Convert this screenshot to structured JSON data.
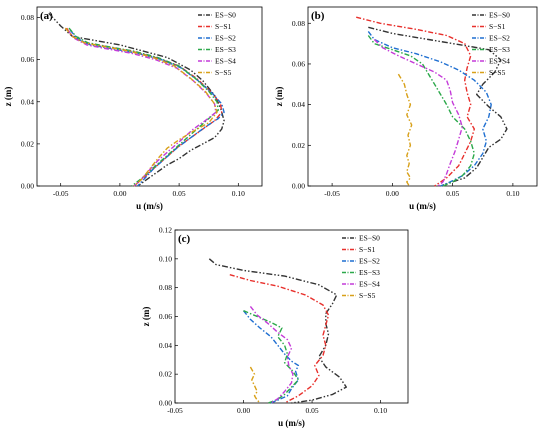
{
  "chart_data": [
    {
      "panel": "(a)",
      "type": "line",
      "xlabel": "u (m/s)",
      "ylabel": "z (m)",
      "xlim": [
        -0.07,
        0.12
      ],
      "ylim": [
        0,
        0.085
      ],
      "xticks": [
        "-0.05",
        "0.00",
        "0.05",
        "0.10"
      ],
      "yticks": [
        "0.00",
        "0.02",
        "0.04",
        "0.06",
        "0.08"
      ],
      "legend_position": "top-right",
      "series": [
        {
          "name": "ES−S0",
          "color": "#333333",
          "x": [
            -0.06,
            -0.05,
            -0.04,
            -0.02,
            0.0,
            0.02,
            0.04,
            0.06,
            0.07,
            0.08,
            0.085,
            0.088,
            0.086,
            0.08,
            0.07,
            0.06,
            0.05,
            0.04,
            0.03,
            0.02,
            0.015
          ],
          "y": [
            0.082,
            0.076,
            0.071,
            0.069,
            0.067,
            0.064,
            0.061,
            0.055,
            0.05,
            0.043,
            0.037,
            0.031,
            0.027,
            0.023,
            0.02,
            0.017,
            0.013,
            0.01,
            0.006,
            0.002,
            0.0
          ]
        },
        {
          "name": "S−S1",
          "color": "#e8302c",
          "x": [
            -0.045,
            -0.04,
            -0.03,
            -0.01,
            0.01,
            0.03,
            0.05,
            0.065,
            0.078,
            0.085,
            0.086,
            0.08,
            0.07,
            0.06,
            0.05,
            0.04,
            0.03,
            0.02,
            0.012
          ],
          "y": [
            0.075,
            0.071,
            0.068,
            0.066,
            0.064,
            0.061,
            0.057,
            0.051,
            0.044,
            0.039,
            0.035,
            0.031,
            0.027,
            0.023,
            0.019,
            0.014,
            0.009,
            0.004,
            0.0
          ]
        },
        {
          "name": "ES−S2",
          "color": "#1f6fd1",
          "x": [
            -0.042,
            -0.036,
            -0.025,
            -0.005,
            0.015,
            0.035,
            0.052,
            0.066,
            0.078,
            0.086,
            0.088,
            0.083,
            0.072,
            0.06,
            0.048,
            0.038,
            0.028,
            0.02,
            0.015
          ],
          "y": [
            0.074,
            0.07,
            0.067,
            0.065,
            0.063,
            0.06,
            0.056,
            0.05,
            0.044,
            0.039,
            0.035,
            0.032,
            0.028,
            0.023,
            0.018,
            0.013,
            0.008,
            0.003,
            0.0
          ]
        },
        {
          "name": "ES−S3",
          "color": "#2ba84a",
          "x": [
            -0.043,
            -0.037,
            -0.027,
            -0.008,
            0.012,
            0.032,
            0.05,
            0.064,
            0.075,
            0.082,
            0.083,
            0.075,
            0.065,
            0.055,
            0.045,
            0.035,
            0.025,
            0.017,
            0.01
          ],
          "y": [
            0.075,
            0.071,
            0.068,
            0.066,
            0.064,
            0.061,
            0.057,
            0.051,
            0.045,
            0.04,
            0.036,
            0.032,
            0.027,
            0.022,
            0.017,
            0.012,
            0.007,
            0.003,
            0.0
          ]
        },
        {
          "name": "ES−S4",
          "color": "#c43bd8",
          "x": [
            -0.044,
            -0.038,
            -0.028,
            -0.01,
            0.01,
            0.03,
            0.048,
            0.062,
            0.073,
            0.08,
            0.081,
            0.072,
            0.062,
            0.052,
            0.042,
            0.032,
            0.024,
            0.018,
            0.012
          ],
          "y": [
            0.074,
            0.07,
            0.067,
            0.065,
            0.063,
            0.06,
            0.056,
            0.05,
            0.044,
            0.039,
            0.035,
            0.031,
            0.027,
            0.022,
            0.017,
            0.012,
            0.007,
            0.003,
            0.0
          ]
        },
        {
          "name": "S−S5",
          "color": "#d8a018",
          "x": [
            -0.046,
            -0.04,
            -0.03,
            -0.012,
            0.008,
            0.028,
            0.046,
            0.06,
            0.072,
            0.08,
            0.082,
            0.075,
            0.062,
            0.05,
            0.04,
            0.032,
            0.025,
            0.018,
            0.012
          ],
          "y": [
            0.075,
            0.071,
            0.068,
            0.066,
            0.064,
            0.061,
            0.057,
            0.051,
            0.045,
            0.039,
            0.035,
            0.03,
            0.026,
            0.022,
            0.018,
            0.013,
            0.008,
            0.003,
            0.0
          ]
        }
      ]
    },
    {
      "panel": "(b)",
      "type": "line",
      "xlabel": "u (m/s)",
      "ylabel": "z (m)",
      "xlim": [
        -0.07,
        0.12
      ],
      "ylim": [
        0,
        0.088
      ],
      "xticks": [
        "-0.05",
        "0.00",
        "0.05",
        "0.10"
      ],
      "yticks": [
        "0.00",
        "0.02",
        "0.04",
        "0.06",
        "0.08"
      ],
      "legend_position": "top-right",
      "series": [
        {
          "name": "ES−S0",
          "color": "#333333",
          "x": [
            -0.02,
            0.0,
            0.03,
            0.06,
            0.08,
            0.09,
            0.085,
            0.075,
            0.07,
            0.08,
            0.09,
            0.095,
            0.09,
            0.08,
            0.075,
            0.07,
            0.06,
            0.05,
            0.04
          ],
          "y": [
            0.078,
            0.075,
            0.072,
            0.069,
            0.067,
            0.062,
            0.056,
            0.05,
            0.045,
            0.039,
            0.034,
            0.028,
            0.023,
            0.019,
            0.014,
            0.009,
            0.004,
            0.002,
            0.0
          ]
        },
        {
          "name": "S−S1",
          "color": "#e8302c",
          "x": [
            -0.03,
            -0.01,
            0.02,
            0.045,
            0.06,
            0.065,
            0.062,
            0.06,
            0.062,
            0.065,
            0.062,
            0.068,
            0.065,
            0.06,
            0.055,
            0.045,
            0.035
          ],
          "y": [
            0.083,
            0.08,
            0.077,
            0.074,
            0.07,
            0.064,
            0.058,
            0.052,
            0.046,
            0.04,
            0.034,
            0.028,
            0.022,
            0.016,
            0.01,
            0.004,
            0.0
          ]
        },
        {
          "name": "ES−S2",
          "color": "#1f6fd1",
          "x": [
            -0.02,
            -0.015,
            0.0,
            0.02,
            0.04,
            0.055,
            0.068,
            0.078,
            0.082,
            0.08,
            0.075,
            0.078,
            0.075,
            0.068,
            0.058,
            0.048,
            0.04
          ],
          "y": [
            0.076,
            0.072,
            0.068,
            0.065,
            0.061,
            0.057,
            0.052,
            0.046,
            0.04,
            0.034,
            0.028,
            0.022,
            0.016,
            0.01,
            0.005,
            0.002,
            0.0
          ]
        },
        {
          "name": "ES−S3",
          "color": "#2ba84a",
          "x": [
            -0.02,
            -0.015,
            0.0,
            0.015,
            0.025,
            0.03,
            0.035,
            0.04,
            0.045,
            0.05,
            0.06,
            0.065,
            0.068,
            0.065,
            0.058,
            0.05,
            0.042
          ],
          "y": [
            0.074,
            0.07,
            0.067,
            0.064,
            0.06,
            0.055,
            0.05,
            0.045,
            0.04,
            0.034,
            0.028,
            0.022,
            0.016,
            0.01,
            0.005,
            0.002,
            0.0
          ]
        },
        {
          "name": "ES−S4",
          "color": "#c43bd8",
          "x": [
            -0.015,
            -0.008,
            0.005,
            0.02,
            0.035,
            0.045,
            0.048,
            0.05,
            0.055,
            0.058,
            0.055,
            0.052,
            0.048,
            0.045,
            0.042,
            0.038
          ],
          "y": [
            0.072,
            0.068,
            0.064,
            0.06,
            0.056,
            0.052,
            0.047,
            0.041,
            0.035,
            0.029,
            0.023,
            0.017,
            0.011,
            0.006,
            0.002,
            0.0
          ]
        },
        {
          "name": "S−S5",
          "color": "#d8a018",
          "x": [
            0.005,
            0.01,
            0.012,
            0.015,
            0.012,
            0.016,
            0.013,
            0.015,
            0.012,
            0.014,
            0.012,
            0.015,
            0.012,
            0.014
          ],
          "y": [
            0.055,
            0.05,
            0.045,
            0.04,
            0.035,
            0.03,
            0.025,
            0.02,
            0.015,
            0.011,
            0.007,
            0.004,
            0.002,
            0.0
          ]
        }
      ]
    },
    {
      "panel": "(c)",
      "type": "line",
      "xlabel": "u (m/s)",
      "ylabel": "z (m)",
      "xlim": [
        -0.05,
        0.12
      ],
      "ylim": [
        0,
        0.12
      ],
      "xticks": [
        "-0.05",
        "0.00",
        "0.05",
        "0.10"
      ],
      "yticks": [
        "0.00",
        "0.02",
        "0.04",
        "0.06",
        "0.08",
        "0.10",
        "0.12"
      ],
      "legend_position": "top-right",
      "series": [
        {
          "name": "ES−S0",
          "color": "#333333",
          "x": [
            -0.025,
            -0.02,
            0.0,
            0.03,
            0.055,
            0.068,
            0.065,
            0.06,
            0.06,
            0.062,
            0.06,
            0.055,
            0.06,
            0.07,
            0.075,
            0.065,
            0.05,
            0.035
          ],
          "y": [
            0.1,
            0.096,
            0.092,
            0.088,
            0.082,
            0.075,
            0.069,
            0.062,
            0.055,
            0.048,
            0.04,
            0.032,
            0.025,
            0.018,
            0.011,
            0.006,
            0.002,
            0.0
          ]
        },
        {
          "name": "S−S1",
          "color": "#e8302c",
          "x": [
            -0.01,
            0.005,
            0.025,
            0.045,
            0.058,
            0.062,
            0.06,
            0.058,
            0.06,
            0.058,
            0.052,
            0.055,
            0.05,
            0.04,
            0.03
          ],
          "y": [
            0.089,
            0.085,
            0.081,
            0.075,
            0.068,
            0.061,
            0.054,
            0.047,
            0.04,
            0.033,
            0.026,
            0.019,
            0.012,
            0.005,
            0.0
          ]
        },
        {
          "name": "ES−S2",
          "color": "#1f6fd1",
          "x": [
            0.0,
            0.005,
            0.012,
            0.02,
            0.025,
            0.03,
            0.035,
            0.04,
            0.038,
            0.04,
            0.035,
            0.032,
            0.025,
            0.02
          ],
          "y": [
            0.064,
            0.058,
            0.052,
            0.046,
            0.04,
            0.034,
            0.029,
            0.026,
            0.022,
            0.016,
            0.01,
            0.005,
            0.002,
            0.0
          ]
        },
        {
          "name": "ES−S3",
          "color": "#2ba84a",
          "x": [
            0.0,
            0.01,
            0.02,
            0.028,
            0.025,
            0.03,
            0.032,
            0.03,
            0.036,
            0.04,
            0.035,
            0.03,
            0.024,
            0.018
          ],
          "y": [
            0.064,
            0.06,
            0.056,
            0.052,
            0.046,
            0.04,
            0.034,
            0.028,
            0.022,
            0.016,
            0.011,
            0.006,
            0.002,
            0.0
          ]
        },
        {
          "name": "ES−S4",
          "color": "#c43bd8",
          "x": [
            0.005,
            0.01,
            0.018,
            0.025,
            0.032,
            0.035,
            0.032,
            0.033,
            0.036,
            0.035,
            0.03,
            0.025,
            0.02
          ],
          "y": [
            0.067,
            0.061,
            0.055,
            0.049,
            0.044,
            0.038,
            0.032,
            0.026,
            0.02,
            0.014,
            0.008,
            0.003,
            0.0
          ]
        },
        {
          "name": "S−S5",
          "color": "#d8a018",
          "x": [
            0.005,
            0.008,
            0.006,
            0.008,
            0.01,
            0.008,
            0.01,
            0.012
          ],
          "y": [
            0.025,
            0.02,
            0.016,
            0.012,
            0.008,
            0.005,
            0.002,
            0.0
          ]
        }
      ]
    }
  ]
}
